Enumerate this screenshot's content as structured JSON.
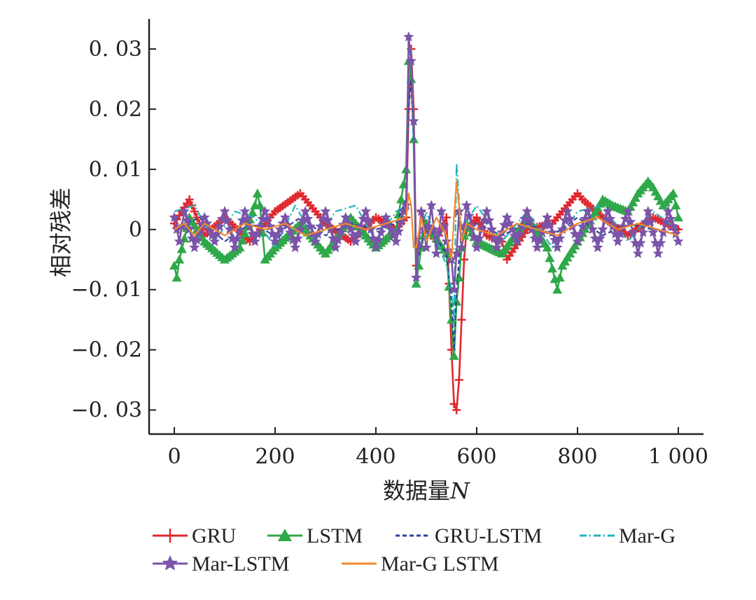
{
  "chart_data": {
    "type": "line",
    "title": "",
    "xlabel": "数据量",
    "xlabel_var": "N",
    "ylabel": "相对残差",
    "xlim": [
      -50,
      1050
    ],
    "ylim": [
      -0.034,
      0.035
    ],
    "x_ticks": [
      {
        "value": 0,
        "label": "0"
      },
      {
        "value": 200,
        "label": "200"
      },
      {
        "value": 400,
        "label": "400"
      },
      {
        "value": 600,
        "label": "600"
      },
      {
        "value": 800,
        "label": "800"
      },
      {
        "value": 1000,
        "label": "1 000"
      }
    ],
    "y_ticks": [
      {
        "value": 0.03,
        "label": "0. 03"
      },
      {
        "value": 0.02,
        "label": "0. 02"
      },
      {
        "value": 0.01,
        "label": "0. 01"
      },
      {
        "value": 0,
        "label": "0"
      },
      {
        "value": -0.01,
        "label": "−0. 01"
      },
      {
        "value": -0.02,
        "label": "−0. 02"
      },
      {
        "value": -0.03,
        "label": "−0. 03"
      }
    ],
    "grid": false,
    "legend_position": "bottom",
    "series": [
      {
        "name": "GRU",
        "color": "#e0282e",
        "marker": "plus",
        "line": "solid",
        "x": [
          0,
          30,
          60,
          100,
          150,
          200,
          250,
          300,
          350,
          400,
          440,
          460,
          465,
          470,
          475,
          480,
          490,
          500,
          520,
          540,
          550,
          555,
          560,
          565,
          570,
          575,
          580,
          600,
          620,
          650,
          660,
          700,
          750,
          780,
          800,
          810,
          850,
          900,
          950,
          1000
        ],
        "y": [
          0.001,
          0.005,
          -0.001,
          0.002,
          -0.002,
          0.003,
          0.006,
          0.001,
          -0.002,
          0.002,
          0.0,
          0.002,
          0.02,
          0.03,
          0.02,
          -0.006,
          0.003,
          0.0,
          -0.002,
          0.002,
          -0.02,
          -0.029,
          -0.03,
          -0.025,
          -0.015,
          -0.005,
          0.0,
          0.002,
          -0.001,
          -0.002,
          -0.005,
          0.0,
          0.001,
          0.004,
          0.006,
          0.005,
          0.002,
          -0.001,
          0.002,
          0.0
        ]
      },
      {
        "name": "LSTM",
        "color": "#2fa84a",
        "marker": "triangle",
        "line": "solid",
        "x": [
          0,
          5,
          10,
          30,
          60,
          100,
          130,
          160,
          165,
          170,
          180,
          200,
          250,
          300,
          350,
          400,
          440,
          460,
          465,
          470,
          475,
          480,
          490,
          500,
          540,
          550,
          555,
          560,
          565,
          570,
          580,
          600,
          650,
          700,
          740,
          760,
          770,
          800,
          850,
          870,
          900,
          920,
          940,
          950,
          970,
          990,
          1000
        ],
        "y": [
          -0.006,
          -0.008,
          -0.005,
          0.002,
          -0.002,
          -0.005,
          -0.003,
          0.004,
          0.006,
          0.004,
          -0.005,
          -0.003,
          0.001,
          -0.004,
          0.002,
          -0.003,
          0.0,
          0.01,
          0.028,
          0.025,
          0.015,
          -0.009,
          -0.003,
          0.001,
          -0.004,
          -0.015,
          -0.021,
          -0.012,
          -0.008,
          -0.003,
          0.001,
          -0.002,
          -0.004,
          0.002,
          -0.003,
          -0.01,
          -0.006,
          -0.002,
          0.005,
          0.004,
          0.003,
          0.006,
          0.008,
          0.007,
          0.004,
          0.006,
          0.002
        ]
      },
      {
        "name": "GRU-LSTM",
        "color": "#2b3f9e",
        "marker": "none",
        "line": "dashed",
        "x": [
          0,
          50,
          100,
          150,
          200,
          250,
          300,
          350,
          400,
          440,
          460,
          465,
          470,
          475,
          480,
          500,
          540,
          550,
          555,
          560,
          570,
          600,
          650,
          700,
          750,
          800,
          850,
          900,
          950,
          1000
        ],
        "y": [
          0.0,
          0.002,
          -0.002,
          0.001,
          -0.001,
          0.002,
          -0.001,
          0.001,
          0.0,
          0.001,
          0.005,
          0.02,
          0.025,
          0.015,
          -0.006,
          0.001,
          -0.004,
          -0.012,
          -0.02,
          -0.01,
          0.0,
          0.001,
          -0.001,
          0.001,
          -0.001,
          0.002,
          -0.001,
          0.001,
          0.0,
          0.0
        ]
      },
      {
        "name": "Mar-G",
        "color": "#1fb3bb",
        "marker": "none",
        "line": "dashdot",
        "x": [
          0,
          40,
          80,
          120,
          160,
          200,
          240,
          280,
          320,
          360,
          400,
          440,
          460,
          465,
          470,
          480,
          500,
          540,
          550,
          555,
          560,
          565,
          570,
          600,
          650,
          700,
          750,
          800,
          850,
          900,
          950,
          1000
        ],
        "y": [
          0.003,
          0.004,
          -0.002,
          0.003,
          0.002,
          -0.003,
          0.004,
          -0.002,
          0.003,
          0.004,
          -0.002,
          0.003,
          0.004,
          0.028,
          0.03,
          -0.005,
          0.003,
          -0.006,
          -0.01,
          -0.015,
          0.011,
          0.005,
          0.0,
          0.004,
          -0.002,
          0.003,
          -0.003,
          0.003,
          0.004,
          -0.002,
          0.003,
          0.0
        ]
      },
      {
        "name": "Mar-LSTM",
        "color": "#7a54a8",
        "marker": "star",
        "line": "solid",
        "x": [
          0,
          10,
          20,
          40,
          60,
          80,
          100,
          120,
          140,
          160,
          180,
          200,
          220,
          240,
          260,
          280,
          300,
          320,
          340,
          360,
          380,
          400,
          420,
          440,
          455,
          460,
          465,
          470,
          475,
          480,
          490,
          500,
          510,
          520,
          530,
          540,
          550,
          555,
          560,
          565,
          570,
          580,
          600,
          620,
          640,
          660,
          680,
          700,
          720,
          740,
          760,
          780,
          800,
          820,
          840,
          860,
          880,
          900,
          920,
          940,
          960,
          980,
          1000
        ],
        "y": [
          0.002,
          -0.002,
          0.003,
          -0.003,
          0.002,
          -0.002,
          0.003,
          -0.003,
          0.003,
          -0.002,
          0.003,
          -0.002,
          0.002,
          -0.003,
          0.003,
          -0.002,
          0.003,
          -0.003,
          0.002,
          -0.002,
          0.003,
          -0.003,
          0.002,
          -0.002,
          0.003,
          0.004,
          0.032,
          0.028,
          0.018,
          -0.008,
          0.003,
          -0.003,
          0.004,
          -0.004,
          0.003,
          -0.002,
          -0.005,
          -0.01,
          -0.004,
          0.003,
          -0.003,
          0.004,
          -0.003,
          0.003,
          -0.003,
          0.002,
          -0.002,
          0.003,
          -0.003,
          0.002,
          -0.003,
          0.003,
          -0.002,
          0.003,
          -0.003,
          0.003,
          -0.002,
          0.003,
          -0.004,
          0.003,
          -0.004,
          0.003,
          -0.002
        ]
      },
      {
        "name": "Mar-G LSTM",
        "color": "#f18a2b",
        "marker": "none",
        "line": "solid",
        "x": [
          0,
          20,
          40,
          60,
          80,
          100,
          140,
          180,
          220,
          260,
          300,
          340,
          380,
          420,
          460,
          465,
          470,
          475,
          480,
          490,
          500,
          520,
          540,
          550,
          555,
          560,
          565,
          570,
          580,
          600,
          640,
          680,
          720,
          760,
          800,
          840,
          880,
          920,
          960,
          1000
        ],
        "y": [
          0.0,
          0.001,
          -0.001,
          0.001,
          0.0,
          -0.001,
          0.001,
          0.0,
          0.001,
          -0.001,
          0.0,
          0.001,
          0.0,
          0.001,
          0.002,
          0.006,
          0.004,
          -0.003,
          -0.003,
          0.002,
          -0.002,
          0.002,
          -0.001,
          -0.005,
          0.002,
          0.008,
          0.004,
          -0.002,
          0.001,
          0.0,
          -0.001,
          0.001,
          0.0,
          -0.001,
          0.001,
          0.002,
          0.0,
          0.001,
          0.0,
          -0.001
        ]
      }
    ]
  }
}
